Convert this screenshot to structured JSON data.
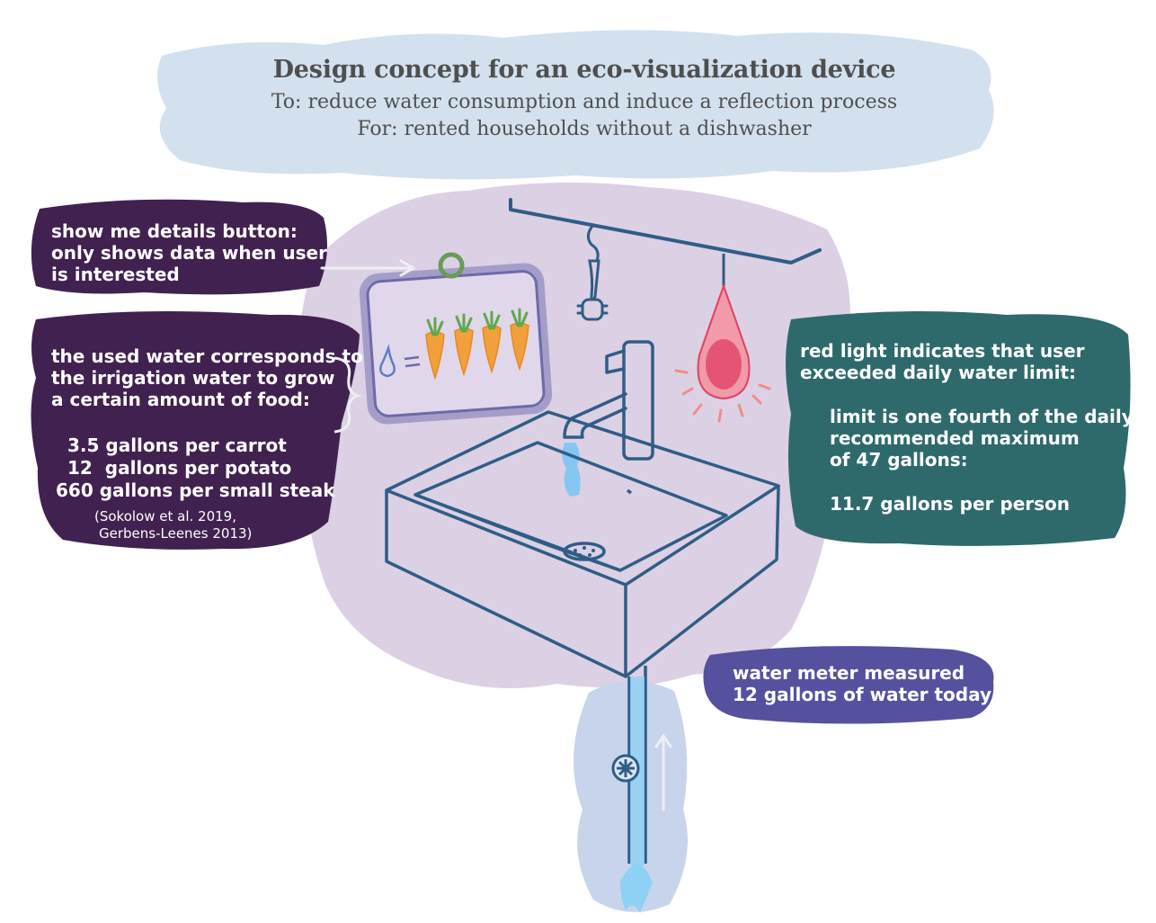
{
  "header": {
    "title": "Design concept for an eco-visualization device",
    "line_to": "To: reduce water consumption and induce a reflection process",
    "line_for": "For: rented households without a dishwasher"
  },
  "notes": {
    "details_button": {
      "line1": "show me details button:",
      "line2": "only shows data when user",
      "line3": "is interested"
    },
    "irrigation": {
      "line1": "the used water corresponds to",
      "line2": "the irrigation water to grow",
      "line3": "a certain amount of food:"
    },
    "food_values": {
      "carrot": "3.5 gallons per carrot",
      "potato": "12  gallons per potato",
      "steak": "660 gallons per small steak",
      "source1": "(Sokolow et al. 2019,",
      "source2": "Gerbens-Leenes 2013)"
    },
    "red_light": {
      "line1": "red light indicates that user",
      "line2": "exceeded daily water limit:",
      "limit1": "limit is one fourth of the daily",
      "limit2": "recommended maximum",
      "limit3": "of 47 gallons:",
      "per_person": "11.7 gallons per person"
    },
    "meter": {
      "line1": "water meter measured",
      "line2": "12 gallons of water today"
    }
  },
  "colors": {
    "title_band": "#d3e1ef",
    "background_blob": "#dcd0e4",
    "note_purple": "#41214f",
    "note_teal": "#2e6a6c",
    "note_indigo": "#56519e",
    "line_blue": "#2f5d86",
    "water_blue": "#5fb7ee",
    "carrot_orange": "#f2a03c",
    "leaf_green": "#5fa84b",
    "light_red": "#e13c62"
  },
  "icons": {
    "drop": "water-drop-icon",
    "carrot": "carrot-icon",
    "button": "details-button-icon",
    "bulb": "warning-light-icon",
    "meter": "water-meter-icon"
  }
}
